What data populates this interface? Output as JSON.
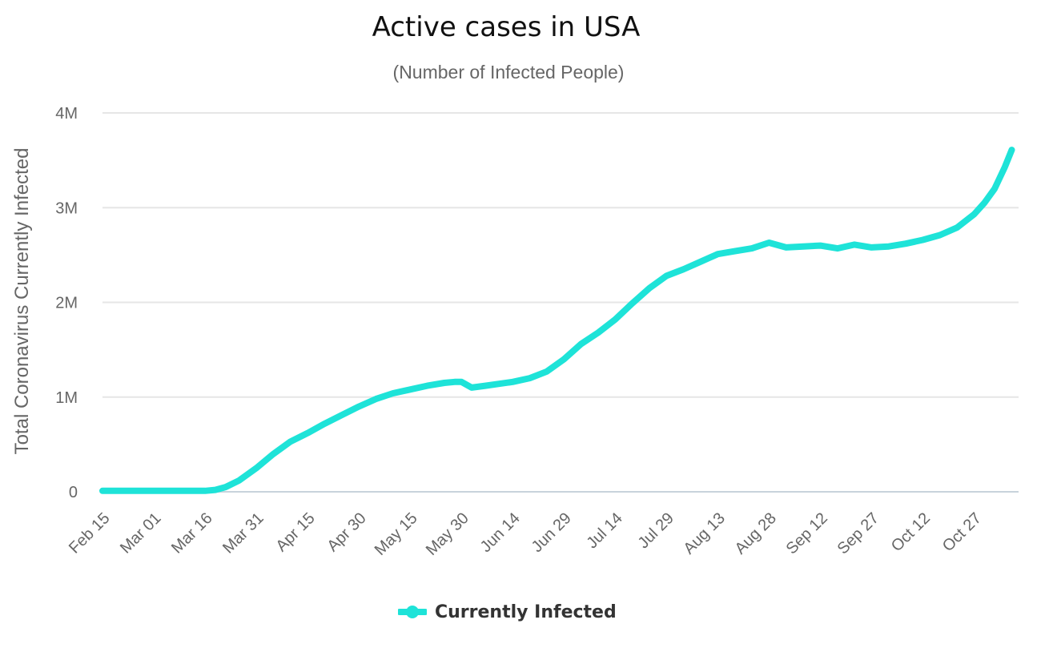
{
  "chart_data": {
    "type": "line",
    "title": "Active cases in USA",
    "subtitle": "(Number of Infected People)",
    "xlabel": "",
    "ylabel": "Total Coronavirus Currently Infected",
    "x_tick_labels": [
      "Feb 15",
      "Mar 01",
      "Mar 16",
      "Mar 31",
      "Apr 15",
      "Apr 30",
      "May 15",
      "May 30",
      "Jun 14",
      "Jun 29",
      "Jul 14",
      "Jul 29",
      "Aug 13",
      "Aug 28",
      "Sep 12",
      "Sep 27",
      "Oct 12",
      "Oct 27"
    ],
    "y_ticks": [
      0,
      1000000,
      2000000,
      3000000,
      4000000
    ],
    "y_tick_labels": [
      "0",
      "1M",
      "2M",
      "3M",
      "4M"
    ],
    "ylim": [
      0,
      4000000
    ],
    "grid": true,
    "legend_position": "bottom-center",
    "series": [
      {
        "name": "Currently Infected",
        "color": "#1ee3d8",
        "x": [
          "2020-02-15",
          "2020-02-22",
          "2020-03-01",
          "2020-03-08",
          "2020-03-16",
          "2020-03-19",
          "2020-03-22",
          "2020-03-26",
          "2020-03-31",
          "2020-04-05",
          "2020-04-10",
          "2020-04-15",
          "2020-04-20",
          "2020-04-25",
          "2020-04-30",
          "2020-05-05",
          "2020-05-10",
          "2020-05-15",
          "2020-05-20",
          "2020-05-25",
          "2020-05-28",
          "2020-05-30",
          "2020-06-02",
          "2020-06-06",
          "2020-06-10",
          "2020-06-14",
          "2020-06-19",
          "2020-06-24",
          "2020-06-29",
          "2020-07-04",
          "2020-07-09",
          "2020-07-14",
          "2020-07-19",
          "2020-07-24",
          "2020-07-29",
          "2020-08-03",
          "2020-08-08",
          "2020-08-13",
          "2020-08-18",
          "2020-08-23",
          "2020-08-28",
          "2020-09-02",
          "2020-09-07",
          "2020-09-12",
          "2020-09-17",
          "2020-09-22",
          "2020-09-27",
          "2020-10-02",
          "2020-10-07",
          "2020-10-12",
          "2020-10-17",
          "2020-10-22",
          "2020-10-27",
          "2020-10-30",
          "2020-11-02",
          "2020-11-05",
          "2020-11-07"
        ],
        "values": [
          10000,
          10000,
          10000,
          10000,
          10000,
          20000,
          50000,
          120000,
          250000,
          400000,
          530000,
          620000,
          720000,
          810000,
          900000,
          980000,
          1040000,
          1080000,
          1120000,
          1150000,
          1160000,
          1160000,
          1100000,
          1120000,
          1140000,
          1160000,
          1200000,
          1270000,
          1400000,
          1560000,
          1680000,
          1820000,
          1990000,
          2150000,
          2280000,
          2350000,
          2430000,
          2510000,
          2540000,
          2570000,
          2630000,
          2580000,
          2590000,
          2600000,
          2570000,
          2610000,
          2580000,
          2590000,
          2620000,
          2660000,
          2710000,
          2790000,
          2930000,
          3050000,
          3200000,
          3430000,
          3610000
        ]
      }
    ]
  }
}
